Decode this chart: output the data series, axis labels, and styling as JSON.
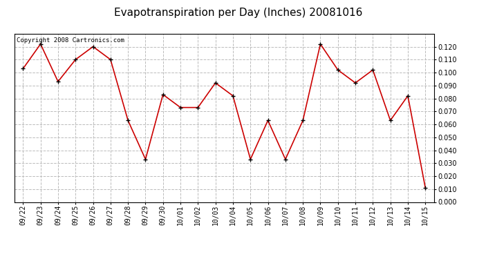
{
  "title": "Evapotranspiration per Day (Inches) 20081016",
  "copyright_text": "Copyright 2008 Cartronics.com",
  "dates": [
    "09/22",
    "09/23",
    "09/24",
    "09/25",
    "09/26",
    "09/27",
    "09/28",
    "09/29",
    "09/30",
    "10/01",
    "10/02",
    "10/03",
    "10/04",
    "10/05",
    "10/06",
    "10/07",
    "10/08",
    "10/09",
    "10/10",
    "10/11",
    "10/12",
    "10/13",
    "10/14",
    "10/15"
  ],
  "values": [
    0.103,
    0.122,
    0.093,
    0.11,
    0.12,
    0.11,
    0.063,
    0.033,
    0.083,
    0.073,
    0.073,
    0.092,
    0.082,
    0.033,
    0.063,
    0.033,
    0.063,
    0.122,
    0.102,
    0.092,
    0.102,
    0.063,
    0.082,
    0.011
  ],
  "line_color": "#cc0000",
  "marker": "+",
  "marker_color": "#000000",
  "bg_color": "#ffffff",
  "plot_bg_color": "#ffffff",
  "grid_color": "#bbbbbb",
  "grid_style": "--",
  "ylim": [
    0.0,
    0.13
  ],
  "yticks": [
    0.0,
    0.01,
    0.02,
    0.03,
    0.04,
    0.05,
    0.06,
    0.07,
    0.08,
    0.09,
    0.1,
    0.11,
    0.12
  ],
  "title_fontsize": 11,
  "tick_fontsize": 7,
  "copyright_fontsize": 6.5
}
